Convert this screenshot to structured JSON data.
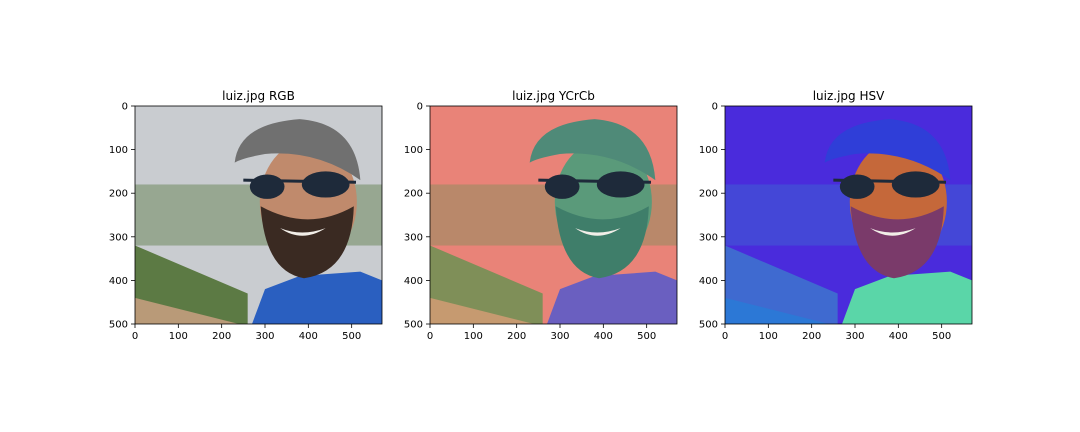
{
  "chart_data": [
    {
      "type": "image",
      "title": "luiz.jpg RGB",
      "xlim": [
        0,
        570
      ],
      "ylim": [
        0,
        500
      ],
      "x_ticks": [
        "0",
        "100",
        "200",
        "300",
        "400",
        "500"
      ],
      "y_ticks": [
        "0",
        "100",
        "200",
        "300",
        "400",
        "500"
      ]
    },
    {
      "type": "image",
      "title": "luiz.jpg YCrCb",
      "xlim": [
        0,
        570
      ],
      "ylim": [
        0,
        500
      ],
      "x_ticks": [
        "0",
        "100",
        "200",
        "300",
        "400",
        "500"
      ],
      "y_ticks": [
        "0",
        "100",
        "200",
        "300",
        "400",
        "500"
      ]
    },
    {
      "type": "image",
      "title": "luiz.jpg HSV",
      "xlim": [
        0,
        570
      ],
      "ylim": [
        0,
        500
      ],
      "x_ticks": [
        "0",
        "100",
        "200",
        "300",
        "400",
        "500"
      ],
      "y_ticks": [
        "0",
        "100",
        "200",
        "300",
        "400",
        "500"
      ]
    }
  ],
  "colors": {
    "rgb": {
      "sky": "#c9ccd0",
      "hill": "#5c7a44",
      "skin": "#c08a6c",
      "beard": "#3a2a22",
      "cap": "#707070",
      "shirt": "#2a5fc0",
      "ground": "#b99a78"
    },
    "ycrcb": {
      "sky": "#e98378",
      "hill": "#7f8f58",
      "skin": "#5a9a7a",
      "beard": "#3f7e6a",
      "cap": "#4f8a78",
      "shirt": "#6a5fc0",
      "ground": "#c69a70"
    },
    "hsv": {
      "sky": "#4a2bdc",
      "hill": "#3f6ad0",
      "skin": "#c5683a",
      "beard": "#7a3a6a",
      "cap": "#2f3ed8",
      "shirt": "#5ad6a8",
      "ground": "#2c78d6"
    }
  }
}
